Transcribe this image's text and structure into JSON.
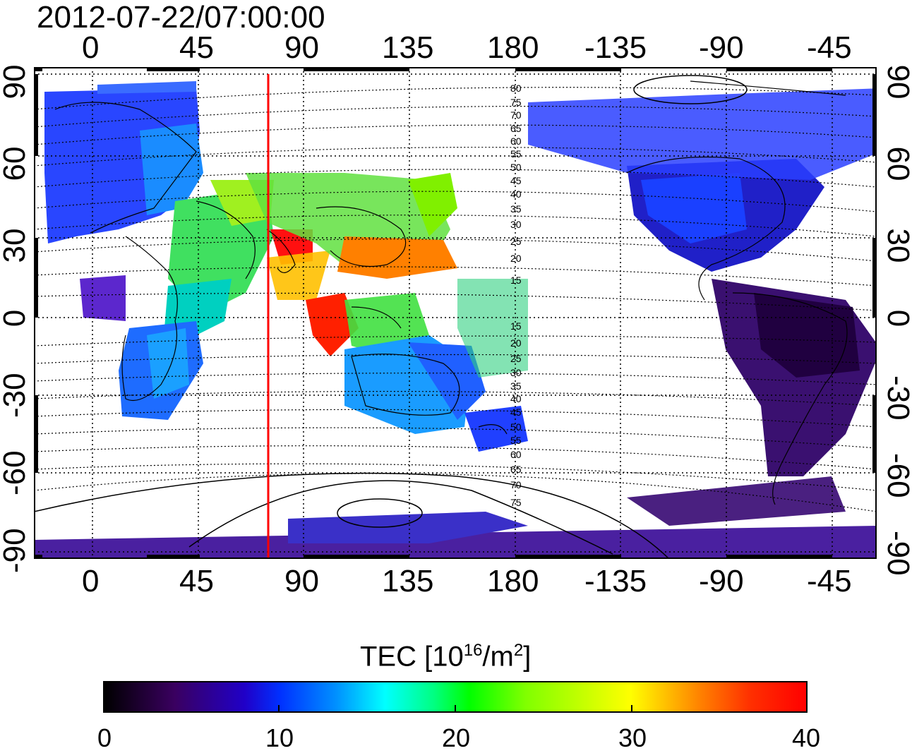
{
  "title": "2012-07-22/07:00:00",
  "map": {
    "lon_ticks": [
      "0",
      "45",
      "90",
      "135",
      "180",
      "-135",
      "-90",
      "-45"
    ],
    "lat_ticks_left": [
      "90",
      "60",
      "30",
      "0",
      "-30",
      "-60",
      "-90"
    ],
    "lat_ticks_right": [
      "90",
      "60",
      "30",
      "0",
      "-30",
      "-60",
      "-90"
    ],
    "lat_values": [
      90,
      60,
      30,
      0,
      -30,
      -60,
      -90
    ],
    "lon_range": [
      -22,
      337
    ],
    "lat_range": [
      -90,
      90
    ],
    "meridian_line_lon": 75,
    "meridian_line_color": "#ff0000",
    "contour_labels_north": [
      "80",
      "75",
      "70",
      "65",
      "60",
      "55",
      "50",
      "45",
      "40",
      "35",
      "30",
      "25",
      "20",
      "15"
    ],
    "contour_labels_south": [
      "15",
      "20",
      "25",
      "30",
      "35",
      "40",
      "45",
      "50",
      "55",
      "60",
      "65",
      "70",
      "75"
    ]
  },
  "colorbar": {
    "title_prefix": "TEC  [10",
    "title_sup1": "16",
    "title_mid": "/m",
    "title_sup2": "2",
    "title_suffix": "]",
    "ticks": [
      "0",
      "10",
      "20",
      "30",
      "40"
    ],
    "tick_values": [
      0,
      10,
      20,
      30,
      40
    ],
    "range": [
      0,
      40
    ],
    "colormap": [
      "#000000",
      "#3a0060",
      "#2000c8",
      "#0030ff",
      "#0090ff",
      "#00ffff",
      "#00ff80",
      "#00ff00",
      "#80ff00",
      "#ffff00",
      "#ff8000",
      "#ff0000"
    ]
  }
}
